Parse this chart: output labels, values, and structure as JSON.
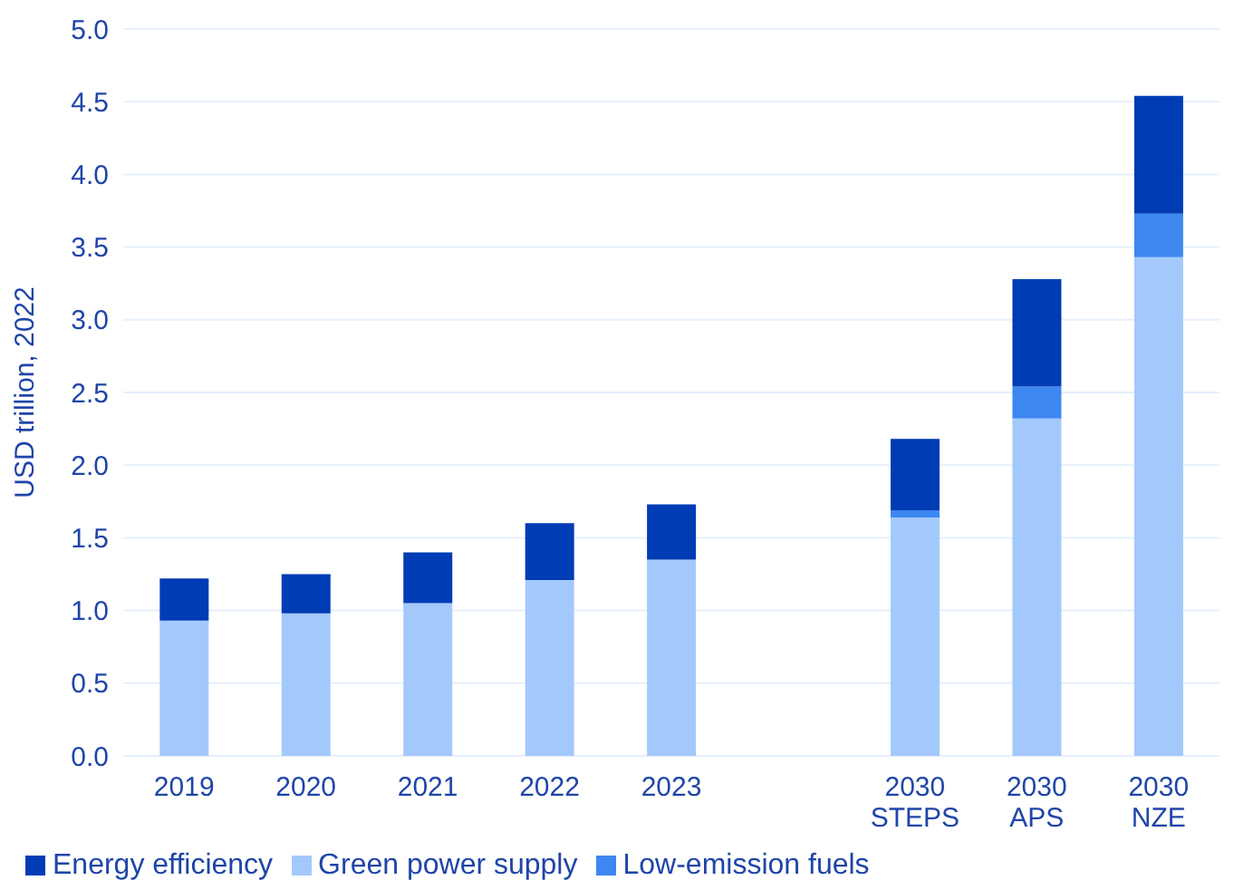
{
  "chart_data": {
    "type": "bar",
    "stacked": true,
    "ylabel": "USD trillion, 2022",
    "categories": [
      "2019",
      "2020",
      "2021",
      "2022",
      "2023",
      null,
      "2030 STEPS",
      "2030 APS",
      "2030 NZE"
    ],
    "series": [
      {
        "name": "Green power supply",
        "color": "#a3c9fc",
        "values": [
          0.93,
          0.98,
          1.05,
          1.21,
          1.35,
          null,
          1.64,
          2.32,
          3.43
        ]
      },
      {
        "name": "Low-emission fuels",
        "color": "#3d87f0",
        "values": [
          0,
          0,
          0,
          0,
          0,
          null,
          0.05,
          0.22,
          0.3
        ]
      },
      {
        "name": "Energy efficiency",
        "color": "#003cb4",
        "values": [
          0.29,
          0.27,
          0.35,
          0.39,
          0.38,
          null,
          0.49,
          0.74,
          0.81
        ]
      }
    ],
    "ylim": [
      0,
      5
    ],
    "yticks": [
      {
        "value": 0,
        "label": "0.0"
      },
      {
        "value": 0.5,
        "label": "0.5"
      },
      {
        "value": 1,
        "label": "1.0"
      },
      {
        "value": 1.5,
        "label": "1.5"
      },
      {
        "value": 2,
        "label": "2.0"
      },
      {
        "value": 2.5,
        "label": "2.5"
      },
      {
        "value": 3,
        "label": "3.0"
      },
      {
        "value": 3.5,
        "label": "3.5"
      },
      {
        "value": 4,
        "label": "4.0"
      },
      {
        "value": 4.5,
        "label": "4.5"
      },
      {
        "value": 5,
        "label": "5.0"
      }
    ],
    "grid": "y",
    "legend": "bottom"
  }
}
